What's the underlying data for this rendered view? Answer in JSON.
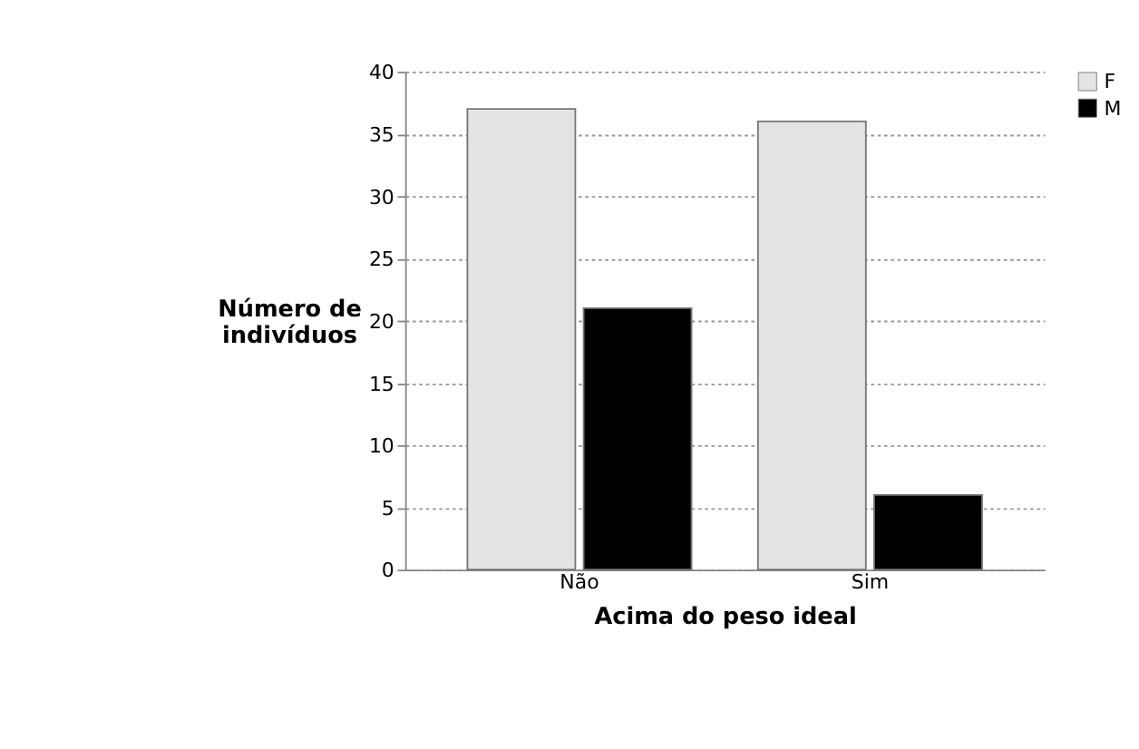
{
  "chart_data": {
    "type": "bar",
    "xlabel": "Acima do peso ideal",
    "ylabel": "Número de indivíduos",
    "categories": [
      "Não",
      "Sim"
    ],
    "series": [
      {
        "name": "F",
        "color": "#e4e4e4",
        "values": [
          37,
          36
        ]
      },
      {
        "name": "M",
        "color": "#000000",
        "values": [
          21,
          6
        ]
      }
    ],
    "ylim": [
      0,
      40
    ],
    "yticks": [
      0,
      5,
      10,
      15,
      20,
      25,
      30,
      35,
      40
    ],
    "grid": "y",
    "legend": "right"
  }
}
